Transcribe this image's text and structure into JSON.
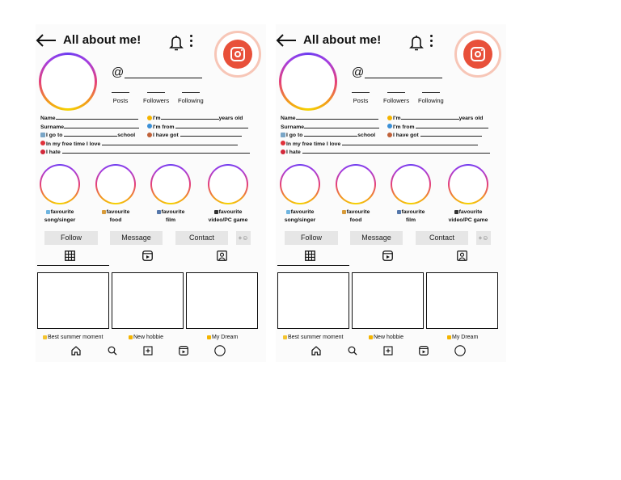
{
  "page": {
    "background": "#ffffff"
  },
  "colors": {
    "ring_gradient": [
      "#f5d400",
      "#f29a1c",
      "#e43f7b",
      "#a43ee0"
    ],
    "logo": "#e8503a",
    "button_bg": "#e6e6e6"
  },
  "cards": [
    {
      "header": {
        "title": "All about me!",
        "back_icon": "arrow-left-icon",
        "bell_icon": "bell-icon",
        "menu_icon": "vertical-dots-icon",
        "logo_icon": "instagram-logo-icon"
      },
      "handle": "@",
      "stats": [
        "Posts",
        "Followers",
        "Following"
      ],
      "info_left": [
        "Name",
        "Surname",
        "I go to",
        "school",
        "In my free time I love",
        "I hate"
      ],
      "info_right": [
        "I'm",
        "years old",
        "I'm from",
        "I have got"
      ],
      "highlights": [
        {
          "line1": "favourite",
          "line2": "song/singer"
        },
        {
          "line1": "favourite",
          "line2": "food"
        },
        {
          "line1": "favourite",
          "line2": "film"
        },
        {
          "line1": "favourite",
          "line2": "video/PC game"
        }
      ],
      "buttons": {
        "follow": "Follow",
        "message": "Message",
        "contact": "Contact"
      },
      "posts": [
        "Best summer moment",
        "New hobbie",
        "My Dream"
      ]
    },
    {
      "header": {
        "title": "All about me!",
        "back_icon": "arrow-left-icon",
        "bell_icon": "bell-icon",
        "menu_icon": "vertical-dots-icon",
        "logo_icon": "instagram-logo-icon"
      },
      "handle": "@",
      "stats": [
        "Posts",
        "Followers",
        "Following"
      ],
      "info_left": [
        "Name",
        "Surname",
        "I go to",
        "school",
        "In my free time I love",
        "I hate"
      ],
      "info_right": [
        "I'm",
        "years old",
        "I'm from",
        "I have got"
      ],
      "highlights": [
        {
          "line1": "favourite",
          "line2": "song/singer"
        },
        {
          "line1": "favourite",
          "line2": "food"
        },
        {
          "line1": "favourite",
          "line2": "film"
        },
        {
          "line1": "favourite",
          "line2": "video/PC game"
        }
      ],
      "buttons": {
        "follow": "Follow",
        "message": "Message",
        "contact": "Contact"
      },
      "posts": [
        "Best summer moment",
        "New hobbie",
        "My Dream"
      ]
    }
  ]
}
